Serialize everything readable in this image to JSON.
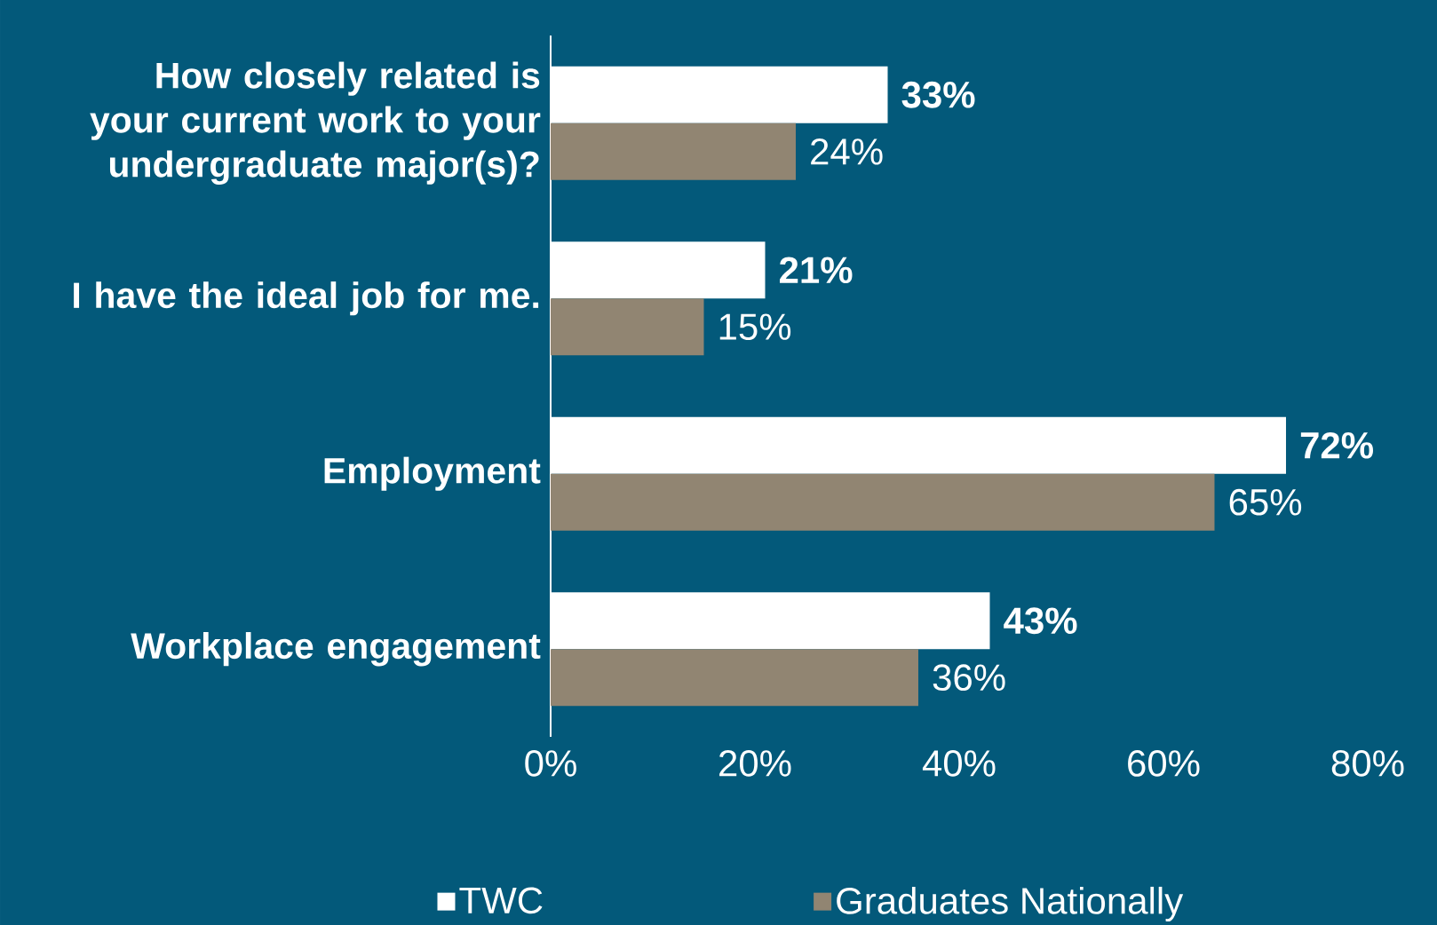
{
  "chart_data": {
    "type": "bar",
    "orientation": "horizontal",
    "categories": [
      "How closely related is your current work to your undergraduate major(s)?",
      "I have the ideal job for me.",
      "Employment",
      "Workplace engagement"
    ],
    "series": [
      {
        "name": "TWC",
        "color": "#ffffff",
        "values": [
          33,
          21,
          72,
          43
        ],
        "value_labels": [
          "33%",
          "21%",
          "72%",
          "43%"
        ]
      },
      {
        "name": "Graduates Nationally",
        "color": "#918572",
        "values": [
          24,
          15,
          65,
          36
        ],
        "value_labels": [
          "24%",
          "15%",
          "65%",
          "36%"
        ]
      }
    ],
    "xlim": [
      0,
      80
    ],
    "xticks": [
      {
        "value": 0,
        "label": "0%"
      },
      {
        "value": 20,
        "label": "20%"
      },
      {
        "value": 40,
        "label": "40%"
      },
      {
        "value": 60,
        "label": "60%"
      },
      {
        "value": 80,
        "label": "80%"
      }
    ],
    "grid": false,
    "legend": "bottom"
  }
}
